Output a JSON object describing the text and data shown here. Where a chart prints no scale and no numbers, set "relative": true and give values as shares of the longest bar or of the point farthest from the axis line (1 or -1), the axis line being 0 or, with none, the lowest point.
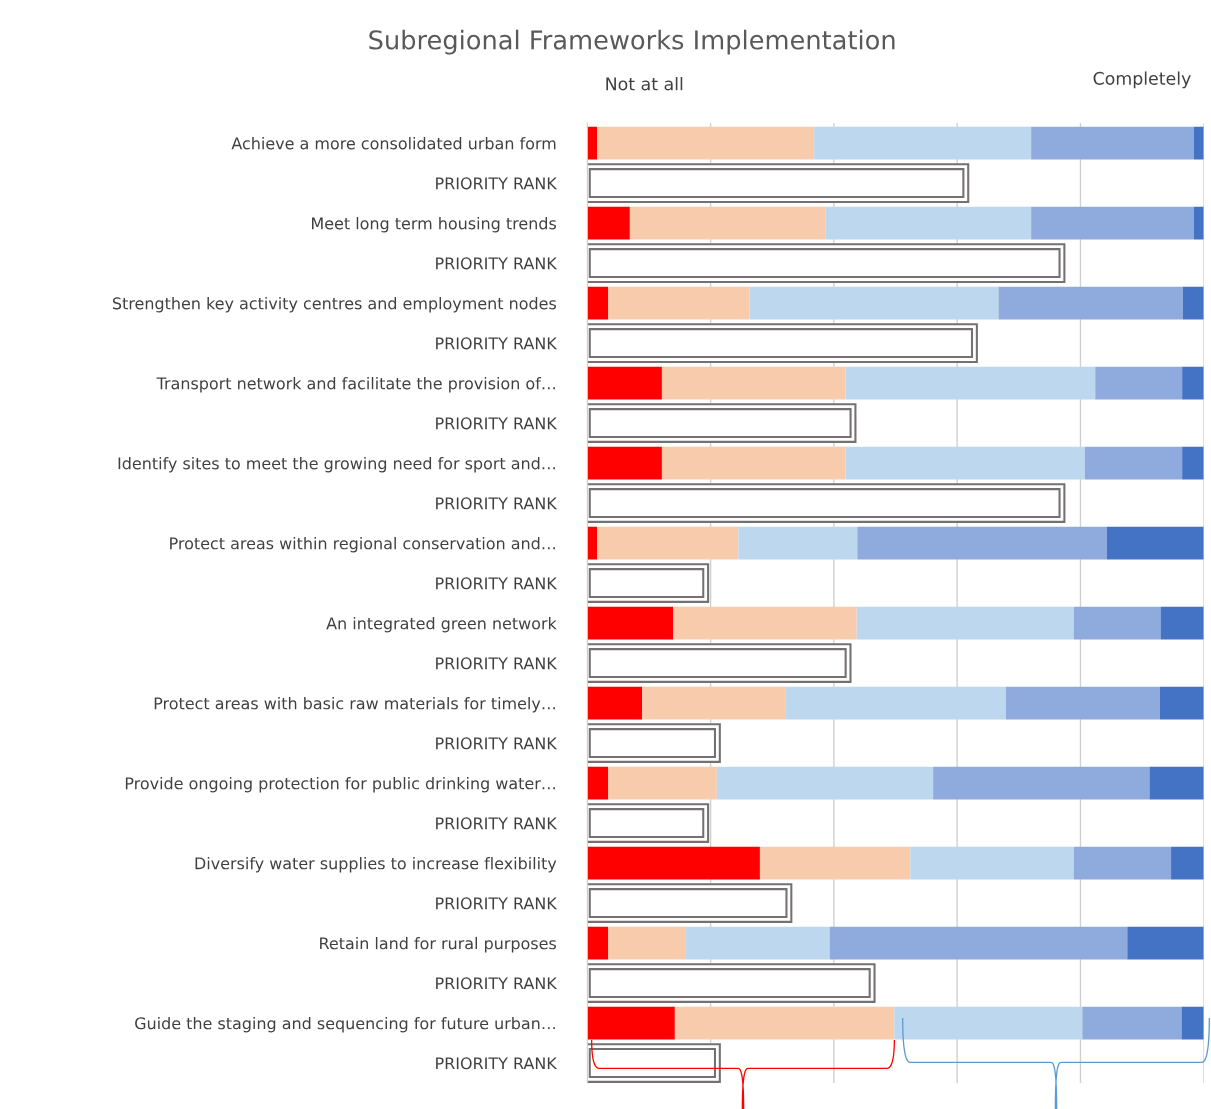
{
  "chart_data": {
    "type": "bar",
    "orientation": "horizontal",
    "stacked": true,
    "relative": true,
    "grid": "x",
    "title": "Subregional Frameworks Implementation",
    "annotations": [
      "Not at all",
      "Completely"
    ],
    "categories": [
      "Achieve a more consolidated urban form",
      "PRIORITY RANK",
      "Meet long term housing trends",
      "PRIORITY RANK",
      "Strengthen key activity centres and employment nodes",
      "PRIORITY RANK",
      "Transport network and facilitate the provision of…",
      "PRIORITY RANK",
      "Identify sites to meet the growing need for sport and…",
      "PRIORITY RANK",
      "Protect areas within regional conservation and…",
      "PRIORITY RANK",
      "An integrated green network",
      "PRIORITY RANK",
      "Protect areas with basic raw materials for timely…",
      "PRIORITY RANK",
      "Provide ongoing protection for public drinking water…",
      "PRIORITY RANK",
      "Diversify water supplies to increase flexibility",
      "PRIORITY RANK",
      "Retain land for rural purposes",
      "PRIORITY RANK",
      "Guide the staging and sequencing for future urban…",
      "PRIORITY RANK"
    ],
    "series": [
      {
        "color": "#ff0000",
        "values": [
          0.016,
          null,
          0.069,
          null,
          0.034,
          null,
          0.121,
          null,
          0.121,
          null,
          0.016,
          null,
          0.139,
          null,
          0.089,
          null,
          0.034,
          null,
          0.28,
          null,
          0.034,
          null,
          0.142,
          null
        ]
      },
      {
        "color": "#f8cbad",
        "values": [
          0.352,
          null,
          0.317,
          null,
          0.229,
          null,
          0.298,
          null,
          0.298,
          null,
          0.229,
          null,
          0.298,
          null,
          0.232,
          null,
          0.176,
          null,
          0.244,
          null,
          0.126,
          null,
          0.356,
          null
        ]
      },
      {
        "color": "#bdd7ee",
        "values": [
          0.352,
          null,
          0.334,
          null,
          0.404,
          null,
          0.405,
          null,
          0.388,
          null,
          0.193,
          null,
          0.352,
          null,
          0.358,
          null,
          0.351,
          null,
          0.265,
          null,
          0.233,
          null,
          0.305,
          null
        ]
      },
      {
        "color": "#8faadc",
        "values": [
          0.264,
          null,
          0.264,
          null,
          0.299,
          null,
          0.141,
          null,
          0.158,
          null,
          0.405,
          null,
          0.141,
          null,
          0.25,
          null,
          0.351,
          null,
          0.158,
          null,
          0.483,
          null,
          0.161,
          null
        ]
      },
      {
        "color": "#4472c4",
        "values": [
          0.016,
          null,
          0.016,
          null,
          0.034,
          null,
          0.035,
          null,
          0.035,
          null,
          0.157,
          null,
          0.07,
          null,
          0.071,
          null,
          0.088,
          null,
          0.053,
          null,
          0.124,
          null,
          0.036,
          null
        ]
      },
      {
        "color": "#ffffff",
        "values": [
          null,
          0.614,
          null,
          0.77,
          null,
          0.628,
          null,
          0.431,
          null,
          0.77,
          null,
          0.192,
          null,
          0.423,
          null,
          0.211,
          null,
          0.192,
          null,
          0.327,
          null,
          0.462,
          null,
          0.211
        ]
      }
    ]
  }
}
